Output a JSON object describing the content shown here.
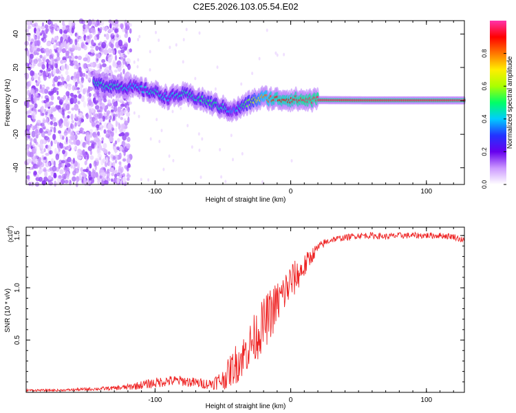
{
  "title": "C2E5.2026.103.05.54.E02",
  "chart_data": [
    {
      "type": "heatmap",
      "name": "spectrogram",
      "xlabel": "Height of straight line (km)",
      "ylabel": "Frequency (Hz)",
      "xlim": [
        -195,
        128
      ],
      "ylim": [
        -50,
        48
      ],
      "xticks": [
        -100,
        0,
        100
      ],
      "xtick_labels": [
        "-100",
        "0",
        "100"
      ],
      "yticks": [
        -40,
        -20,
        0,
        20,
        40
      ],
      "ytick_labels": [
        "-40",
        "-20",
        "0",
        "20",
        "40"
      ],
      "colorbar": {
        "label": "Normalized spectral amplitude",
        "range": [
          0.0,
          1.0
        ],
        "ticks": [
          0.0,
          0.2,
          0.4,
          0.6,
          0.8
        ],
        "tick_labels": [
          "0.0",
          "0.2",
          "0.4",
          "0.6",
          "0.8"
        ],
        "colormap": [
          "#ffffff",
          "#cc99ff",
          "#6600ee",
          "#2233ff",
          "#00ccff",
          "#00ff66",
          "#aaff00",
          "#ffee00",
          "#ff7700",
          "#ff0000",
          "#ff33aa"
        ]
      },
      "ridge": {
        "description_points_x": [
          -145,
          -130,
          -115,
          -100,
          -90,
          -80,
          -70,
          -60,
          -50,
          -42,
          -35,
          -28,
          -20,
          -10,
          0,
          10,
          20,
          60,
          100,
          128
        ],
        "description_points_freq": [
          10,
          9,
          8,
          5,
          2,
          4,
          2,
          -1,
          -4,
          -6,
          -3,
          0,
          2,
          1,
          1,
          0.5,
          0.5,
          0.3,
          0.3,
          0.3
        ],
        "description_points_amp": [
          0.45,
          0.45,
          0.4,
          0.45,
          0.4,
          0.45,
          0.45,
          0.5,
          0.45,
          0.35,
          0.5,
          0.6,
          0.8,
          0.9,
          0.9,
          0.95,
          0.95,
          0.95,
          0.95,
          0.95
        ]
      }
    },
    {
      "type": "line",
      "name": "snr",
      "xlabel": "Height of straight line (km)",
      "ylabel": "SNR (10 * v/v)",
      "scale_label": "(x10",
      "scale_exponent": "4",
      "xlim": [
        -195,
        128
      ],
      "ylim": [
        0,
        1.58
      ],
      "xticks": [
        -100,
        0,
        100
      ],
      "xtick_labels": [
        "-100",
        "0",
        "100"
      ],
      "yticks": [
        0.5,
        1.0,
        1.5
      ],
      "ytick_labels": [
        "0.5",
        "1.0",
        "1.5"
      ],
      "color": "#ee2222",
      "series": [
        {
          "name": "SNR",
          "x": [
            -195,
            -170,
            -150,
            -130,
            -120,
            -110,
            -100,
            -90,
            -80,
            -70,
            -60,
            -50,
            -45,
            -40,
            -35,
            -30,
            -25,
            -20,
            -15,
            -10,
            -5,
            0,
            5,
            10,
            15,
            20,
            25,
            30,
            40,
            50,
            60,
            70,
            80,
            90,
            100,
            110,
            120,
            128
          ],
          "values": [
            0.02,
            0.02,
            0.03,
            0.04,
            0.05,
            0.07,
            0.09,
            0.11,
            0.11,
            0.09,
            0.08,
            0.12,
            0.2,
            0.28,
            0.35,
            0.45,
            0.55,
            0.65,
            0.75,
            0.85,
            0.95,
            1.05,
            1.12,
            1.2,
            1.3,
            1.38,
            1.43,
            1.46,
            1.48,
            1.5,
            1.5,
            1.49,
            1.5,
            1.5,
            1.5,
            1.5,
            1.49,
            1.45
          ],
          "noise": [
            0.01,
            0.01,
            0.015,
            0.02,
            0.03,
            0.04,
            0.05,
            0.05,
            0.05,
            0.05,
            0.05,
            0.1,
            0.15,
            0.2,
            0.2,
            0.22,
            0.25,
            0.25,
            0.25,
            0.22,
            0.2,
            0.2,
            0.15,
            0.12,
            0.08,
            0.05,
            0.04,
            0.03,
            0.03,
            0.03,
            0.03,
            0.03,
            0.03,
            0.03,
            0.03,
            0.03,
            0.03,
            0.03
          ]
        }
      ]
    }
  ]
}
